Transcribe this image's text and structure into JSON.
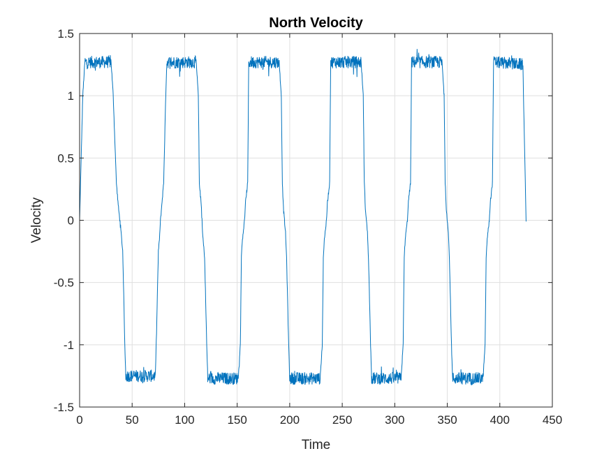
{
  "chart_data": {
    "type": "line",
    "title": "North Velocity",
    "xlabel": "Time",
    "ylabel": "Velocity",
    "xlim": [
      0,
      450
    ],
    "ylim": [
      -1.5,
      1.5
    ],
    "xticks": [
      0,
      50,
      100,
      150,
      200,
      250,
      300,
      350,
      400,
      450
    ],
    "yticks": [
      -1.5,
      -1,
      -0.5,
      0,
      0.5,
      1,
      1.5
    ],
    "xtick_labels": [
      "0",
      "50",
      "100",
      "150",
      "200",
      "250",
      "300",
      "350",
      "400",
      "450"
    ],
    "ytick_labels": [
      "-1.5",
      "-1",
      "-0.5",
      "0",
      "0.5",
      "1",
      "1.5"
    ],
    "grid": true,
    "line_color": "#0072BD",
    "series": [
      {
        "x": [
          0,
          3,
          5,
          30,
          32,
          35,
          36,
          37,
          39,
          40,
          41,
          42,
          43,
          44,
          72,
          73,
          74,
          75,
          76,
          77,
          78,
          79,
          80,
          82,
          83,
          111,
          113,
          114,
          116,
          117,
          119,
          121,
          122,
          151,
          153,
          154,
          155,
          157,
          158,
          160,
          161,
          190,
          192,
          193,
          194,
          196,
          197,
          199,
          200,
          229,
          231,
          232,
          233,
          235,
          236,
          238,
          239,
          268,
          270,
          271,
          272,
          274,
          275,
          277,
          278,
          306,
          308,
          309,
          310,
          312,
          313,
          315,
          316,
          345,
          347,
          348,
          349,
          351,
          352,
          354,
          355,
          384,
          386,
          387,
          388,
          390,
          391,
          393,
          394,
          422,
          423,
          424,
          425
        ],
        "y": [
          0,
          1.0,
          1.27,
          1.27,
          1.0,
          0.3,
          0.2,
          0.1,
          -0.05,
          -0.15,
          -0.25,
          -0.6,
          -1.0,
          -1.25,
          -1.25,
          -1.0,
          -0.6,
          -0.25,
          -0.15,
          0.0,
          0.1,
          0.2,
          0.3,
          1.0,
          1.27,
          1.27,
          1.0,
          0.3,
          0.1,
          -0.1,
          -0.3,
          -1.0,
          -1.27,
          -1.27,
          -1.0,
          -0.3,
          -0.15,
          0.0,
          0.15,
          0.3,
          1.27,
          1.27,
          1.0,
          0.3,
          0.1,
          -0.1,
          -0.3,
          -1.0,
          -1.27,
          -1.27,
          -1.0,
          -0.3,
          -0.15,
          0.0,
          0.15,
          0.3,
          1.27,
          1.27,
          1.0,
          0.3,
          0.1,
          -0.1,
          -0.3,
          -1.0,
          -1.27,
          -1.27,
          -1.0,
          -0.3,
          -0.15,
          0.0,
          0.15,
          0.3,
          1.27,
          1.27,
          1.0,
          0.3,
          0.1,
          -0.1,
          -0.3,
          -1.0,
          -1.27,
          -1.27,
          -1.0,
          -0.3,
          -0.15,
          0.0,
          0.15,
          0.3,
          1.27,
          1.25,
          0.8,
          0.4,
          -0.01
        ],
        "noise": 0.05
      }
    ]
  }
}
